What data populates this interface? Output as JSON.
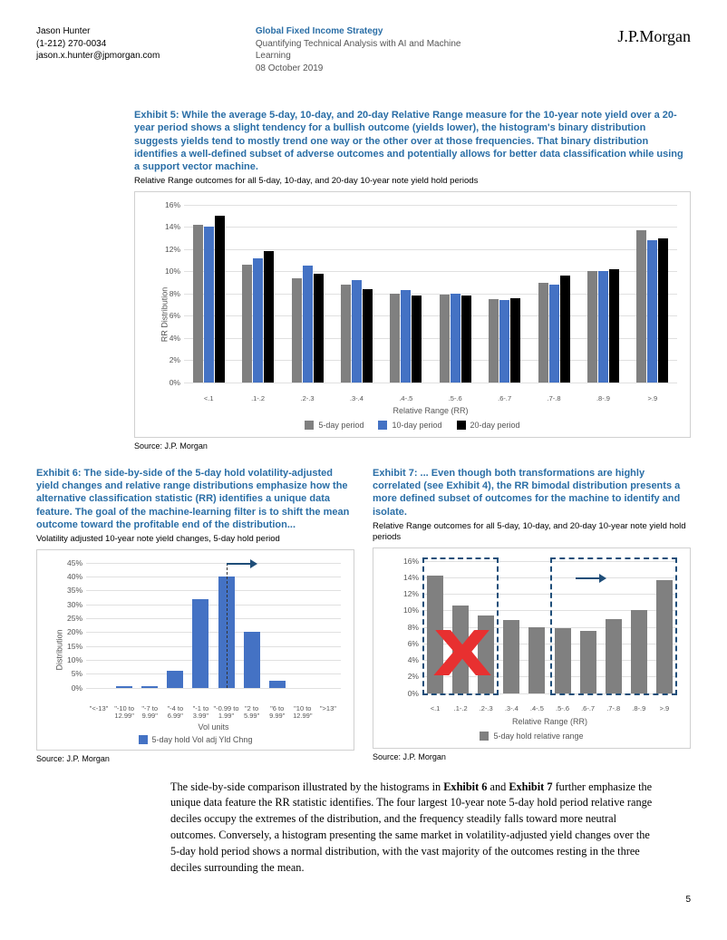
{
  "header": {
    "author": "Jason Hunter",
    "phone": "(1-212) 270-0034",
    "email": "jason.x.hunter@jpmorgan.com",
    "title1": "Global Fixed Income Strategy",
    "title2": "Quantifying Technical Analysis with AI and Machine Learning",
    "date": "08 October 2019",
    "brand": "J.P.Morgan"
  },
  "ex5": {
    "title": "Exhibit 5: While the average 5-day, 10-day, and 20-day Relative Range measure for the 10-year note yield over a 20-year period shows a slight tendency for a bullish outcome (yields lower), the histogram's binary distribution suggests yields tend to mostly trend one way or the other over at those frequencies. That binary distribution identifies a well-defined subset of adverse outcomes and potentially allows for better data classification while using a support vector machine.",
    "subtitle": "Relative Range outcomes for all 5-day, 10-day, and 20-day 10-year note yield hold periods",
    "ylabel": "RR Distribution",
    "xlabel": "Relative Range (RR)",
    "yticks": [
      "0%",
      "2%",
      "4%",
      "6%",
      "8%",
      "10%",
      "12%",
      "14%",
      "16%"
    ],
    "ymax": 16,
    "categories": [
      "<.1",
      ".1-.2",
      ".2-.3",
      ".3-.4",
      ".4-.5",
      ".5-.6",
      ".6-.7",
      ".7-.8",
      ".8-.9",
      ">.9"
    ],
    "series": [
      {
        "name": "5-day period",
        "color": "#808080",
        "values": [
          14.2,
          10.6,
          9.4,
          8.8,
          8.0,
          7.9,
          7.5,
          9.0,
          10.0,
          13.7
        ]
      },
      {
        "name": "10-day period",
        "color": "#4472c4",
        "values": [
          14.0,
          11.2,
          10.5,
          9.2,
          8.3,
          8.0,
          7.4,
          8.8,
          10.0,
          12.8
        ]
      },
      {
        "name": "20-day period",
        "color": "#000000",
        "values": [
          15.0,
          11.8,
          9.8,
          8.4,
          7.8,
          7.8,
          7.6,
          9.6,
          10.2,
          13.0
        ]
      }
    ],
    "source": "Source: J.P. Morgan"
  },
  "ex6": {
    "title": "Exhibit 6: The side-by-side of the 5-day hold volatility-adjusted yield changes and relative range distributions emphasize how the alternative classification statistic (RR) identifies a unique data feature. The goal of the machine-learning filter is to shift the mean outcome toward the profitable end of the distribution...",
    "subtitle": "Volatility adjusted 10-year note yield changes, 5-day hold period",
    "ylabel": "Distribution",
    "xlabel": "Vol units",
    "yticks": [
      "0%",
      "5%",
      "10%",
      "15%",
      "20%",
      "25%",
      "30%",
      "35%",
      "40%",
      "45%"
    ],
    "ymax": 45,
    "categories": [
      "\"<-13\"",
      "\"-10 to 12.99\"",
      "\"-7 to 9.99\"",
      "\"-4 to 6.99\"",
      "\"-1 to 3.99\"",
      "\"-0.99 to 1.99\"",
      "\"2 to 5.99\"",
      "\"6 to 9.99\"",
      "\"10 to 12.99\"",
      "\">13\""
    ],
    "series": {
      "name": "5-day hold Vol adj Yld Chng",
      "color": "#4472c4",
      "values": [
        0,
        0.5,
        0.5,
        6,
        32,
        40,
        20,
        2.5,
        0,
        0
      ]
    },
    "source": "Source: J.P. Morgan"
  },
  "ex7": {
    "title": "Exhibit 7: ... Even though both transformations are highly correlated (see Exhibit 4), the RR bimodal distribution presents a more defined subset of outcomes for the machine to identify and isolate.",
    "subtitle": "Relative Range outcomes for all 5-day, 10-day, and 20-day 10-year note yield hold periods",
    "ylabel": "",
    "xlabel": "Relative Range (RR)",
    "yticks": [
      "0%",
      "2%",
      "4%",
      "6%",
      "8%",
      "10%",
      "12%",
      "14%",
      "16%"
    ],
    "ymax": 16,
    "categories": [
      "<.1",
      ".1-.2",
      ".2-.3",
      ".3-.4",
      ".4-.5",
      ".5-.6",
      ".6-.7",
      ".7-.8",
      ".8-.9",
      ">.9"
    ],
    "series": {
      "name": "5-day hold relative range",
      "color": "#808080",
      "values": [
        14.2,
        10.6,
        9.4,
        8.8,
        8.0,
        7.9,
        7.5,
        9.0,
        10.0,
        13.7
      ]
    },
    "source": "Source: J.P. Morgan"
  },
  "body": {
    "para": "The side-by-side comparison illustrated by the histograms in Exhibit 6 and Exhibit 7 further emphasize the unique data feature the RR statistic identifies.  The four largest 10-year note 5-day hold period relative range deciles occupy the extremes of the distribution, and the frequency steadily falls toward more neutral outcomes. Conversely, a histogram presenting the same market in volatility-adjusted yield changes over the 5-day hold period shows a normal distribution, with the vast majority of the outcomes resting in the three deciles surrounding the mean."
  },
  "page": "5",
  "colors": {
    "grid": "#e0e0e0",
    "border": "#d0d0d0"
  }
}
